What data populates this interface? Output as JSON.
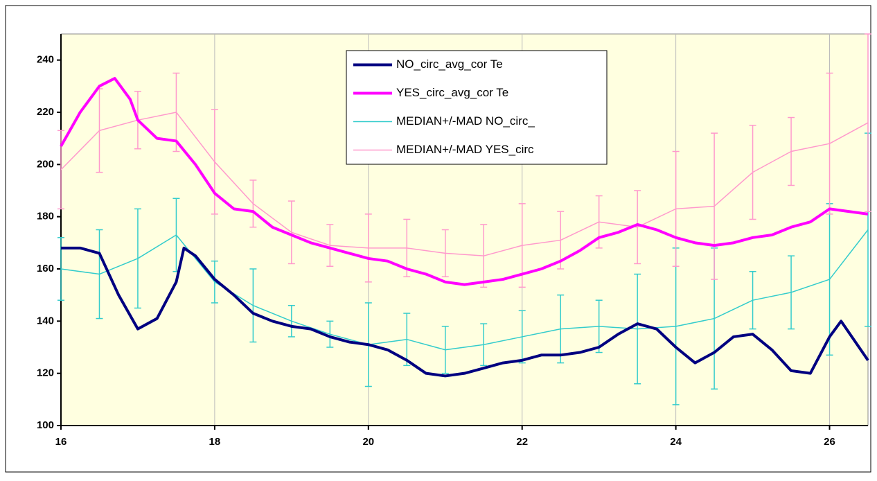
{
  "chart_data": {
    "type": "line",
    "xlim": [
      16,
      26.5
    ],
    "xticks": [
      16,
      18,
      20,
      22,
      24,
      26
    ],
    "ylim": [
      100,
      250
    ],
    "yticks": [
      100,
      120,
      140,
      160,
      180,
      200,
      220,
      240
    ],
    "grid": "x",
    "legend": "top",
    "background": "#ffffe0",
    "series": [
      {
        "name": "NO_circ_avg_cor Te",
        "color": "#000080",
        "width": 4,
        "x": [
          16,
          16.25,
          16.5,
          16.75,
          17,
          17.25,
          17.5,
          17.6,
          17.75,
          18,
          18.25,
          18.5,
          18.75,
          19,
          19.25,
          19.5,
          19.75,
          20,
          20.25,
          20.5,
          20.75,
          21,
          21.25,
          21.5,
          21.75,
          22,
          22.25,
          22.5,
          22.75,
          23,
          23.25,
          23.5,
          23.75,
          24,
          24.25,
          24.5,
          24.75,
          25,
          25.25,
          25.5,
          25.75,
          26,
          26.15,
          26.5
        ],
        "values": [
          168,
          168,
          166,
          150,
          137,
          141,
          155,
          168,
          165,
          156,
          150,
          143,
          140,
          138,
          137,
          134,
          132,
          131,
          129,
          125,
          120,
          119,
          120,
          122,
          124,
          125,
          127,
          127,
          128,
          130,
          135,
          139,
          137,
          130,
          124,
          128,
          134,
          135,
          129,
          121,
          120,
          134,
          140,
          125
        ]
      },
      {
        "name": "YES_circ_avg_cor Te",
        "color": "#ff00ff",
        "width": 4,
        "x": [
          16,
          16.25,
          16.5,
          16.7,
          16.9,
          17,
          17.25,
          17.5,
          17.75,
          18,
          18.25,
          18.5,
          18.75,
          19,
          19.25,
          19.5,
          19.75,
          20,
          20.25,
          20.5,
          20.75,
          21,
          21.25,
          21.5,
          21.75,
          22,
          22.25,
          22.5,
          22.75,
          23,
          23.25,
          23.5,
          23.75,
          24,
          24.25,
          24.5,
          24.75,
          25,
          25.25,
          25.5,
          25.75,
          26,
          26.25,
          26.5
        ],
        "values": [
          207,
          220,
          230,
          233,
          225,
          217,
          210,
          209,
          200,
          189,
          183,
          182,
          176,
          173,
          170,
          168,
          166,
          164,
          163,
          160,
          158,
          155,
          154,
          155,
          156,
          158,
          160,
          163,
          167,
          172,
          174,
          177,
          175,
          172,
          170,
          169,
          170,
          172,
          173,
          176,
          178,
          183,
          182,
          181
        ]
      },
      {
        "name": "MEDIAN+/-MAD NO_circ_",
        "color": "#33cccc",
        "width": 1.5,
        "x": [
          16,
          16.5,
          17,
          17.5,
          18,
          18.5,
          19,
          19.5,
          20,
          20.5,
          21,
          21.5,
          22,
          22.5,
          23,
          23.5,
          24,
          24.5,
          25,
          25.5,
          26,
          26.5
        ],
        "values": [
          160,
          158,
          164,
          173,
          155,
          146,
          140,
          135,
          131,
          133,
          129,
          131,
          134,
          137,
          138,
          137,
          138,
          141,
          148,
          151,
          156,
          175
        ],
        "errors": [
          12,
          17,
          19,
          14,
          8,
          14,
          6,
          5,
          16,
          10,
          9,
          8,
          10,
          13,
          10,
          21,
          30,
          27,
          11,
          14,
          29,
          37
        ]
      },
      {
        "name": "MEDIAN+/-MAD YES_circ",
        "color": "#ff99cc",
        "width": 1.5,
        "x": [
          16,
          16.5,
          17,
          17.5,
          18,
          18.5,
          19,
          19.5,
          20,
          20.5,
          21,
          21.5,
          22,
          22.5,
          23,
          23.5,
          24,
          24.5,
          25,
          25.5,
          26,
          26.5
        ],
        "values": [
          198,
          213,
          217,
          220,
          201,
          185,
          174,
          169,
          168,
          168,
          166,
          165,
          169,
          171,
          178,
          176,
          183,
          184,
          197,
          205,
          208,
          216
        ],
        "errors": [
          15,
          16,
          11,
          15,
          20,
          9,
          12,
          8,
          13,
          11,
          9,
          12,
          16,
          11,
          10,
          14,
          22,
          28,
          18,
          13,
          27,
          34
        ]
      }
    ]
  }
}
